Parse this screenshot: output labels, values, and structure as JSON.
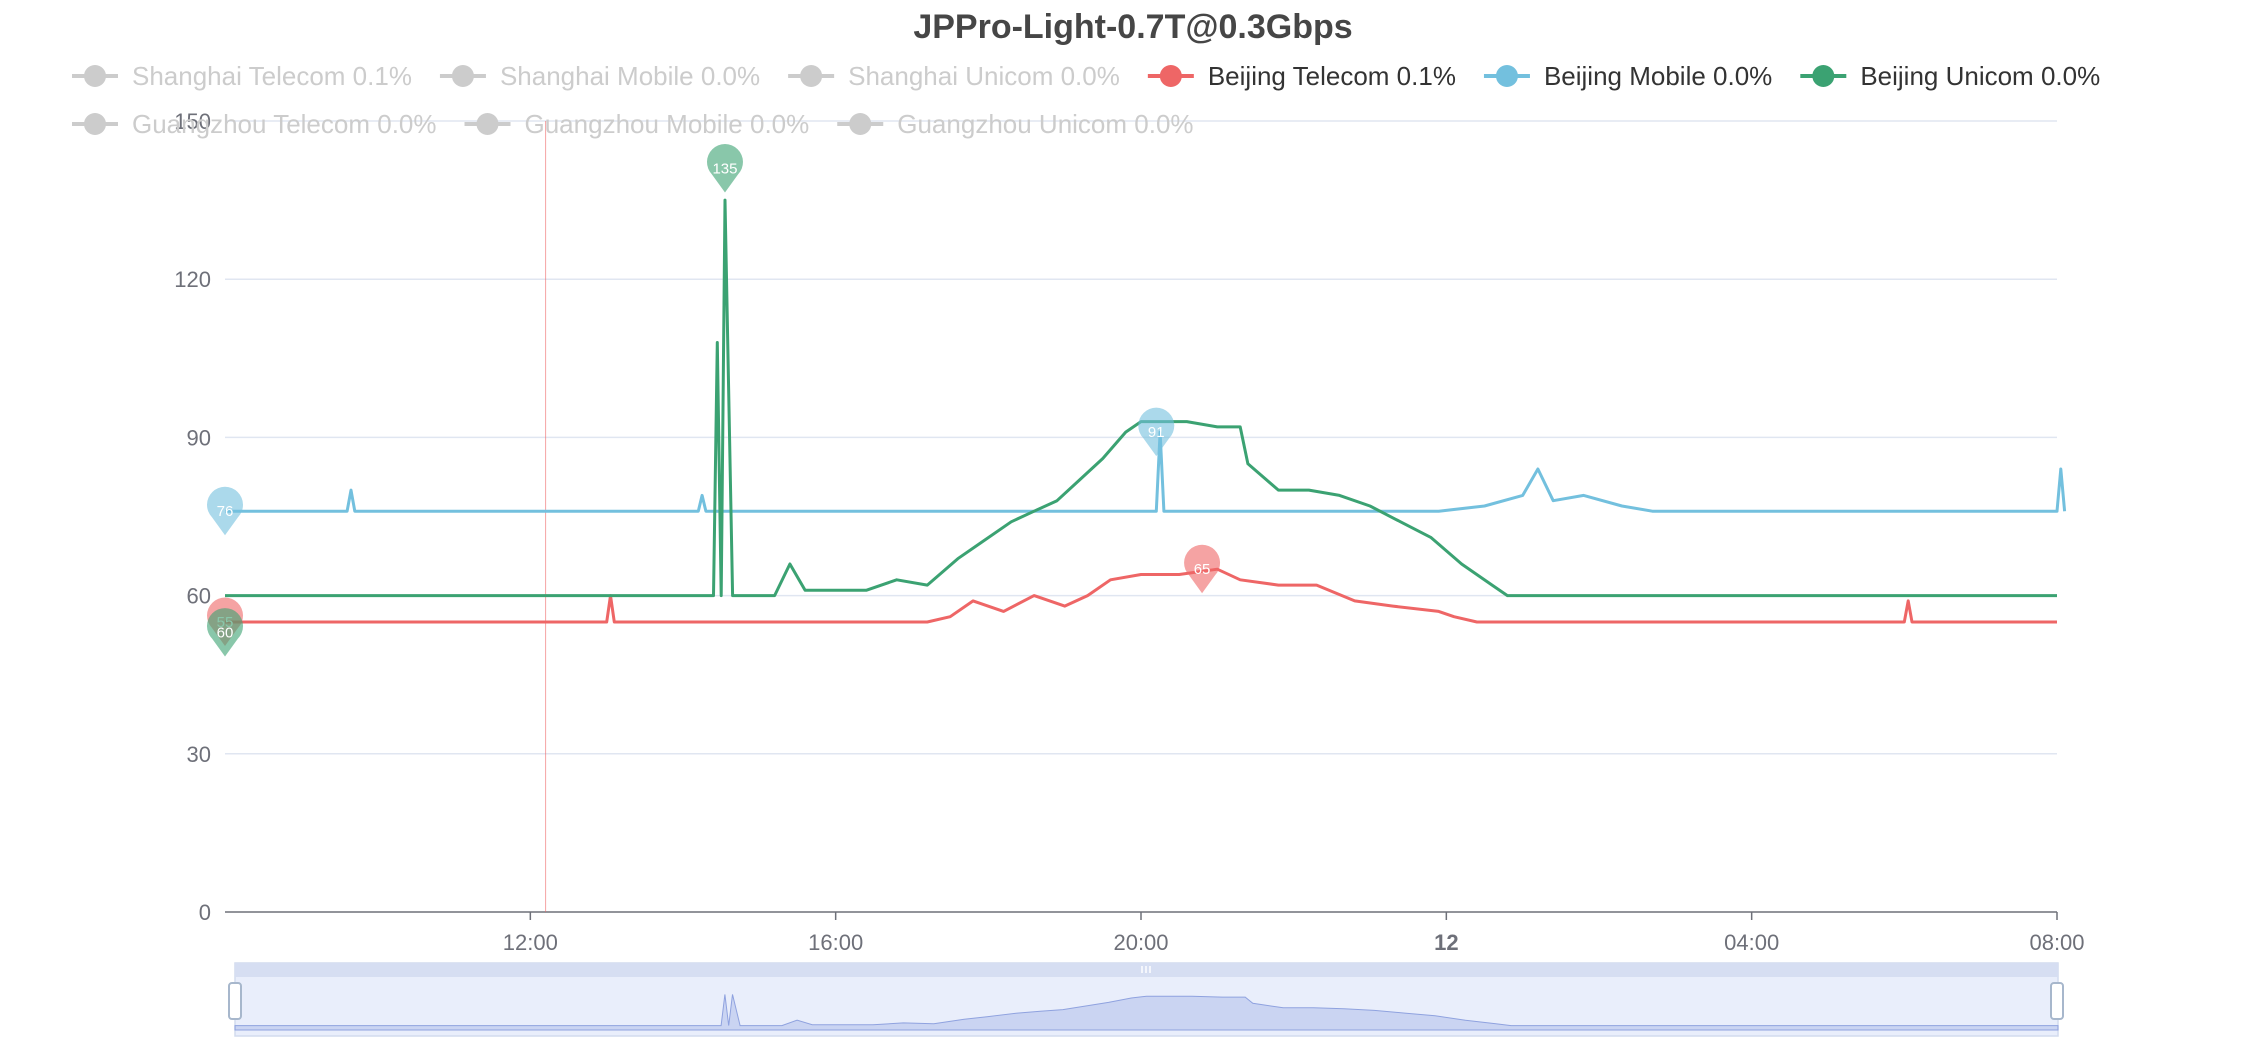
{
  "chart_data": {
    "type": "line",
    "title": "JPPro-Light-0.7T@0.3Gbps",
    "ylim": [
      0,
      150
    ],
    "y_ticks": [
      "0",
      "30",
      "60",
      "90",
      "120",
      "150"
    ],
    "x_ticks": [
      {
        "label": "12:00",
        "pos": 12,
        "bold": false
      },
      {
        "label": "16:00",
        "pos": 16,
        "bold": false
      },
      {
        "label": "20:00",
        "pos": 20,
        "bold": false
      },
      {
        "label": "12",
        "pos": 24,
        "bold": true
      },
      {
        "label": "04:00",
        "pos": 28,
        "bold": false
      },
      {
        "label": "08:00",
        "pos": 32,
        "bold": false
      }
    ],
    "x_range_hours": [
      8,
      32
    ],
    "grid": true,
    "legend_position": "top",
    "cursor_hour": 12.2,
    "legend": [
      {
        "name": "Shanghai Telecom 0.1%",
        "active": false,
        "color": "#cccccc"
      },
      {
        "name": "Shanghai Mobile 0.0%",
        "active": false,
        "color": "#cccccc"
      },
      {
        "name": "Shanghai Unicom 0.0%",
        "active": false,
        "color": "#cccccc"
      },
      {
        "name": "Beijing Telecom 0.1%",
        "active": true,
        "color": "#ee6666"
      },
      {
        "name": "Beijing Mobile 0.0%",
        "active": true,
        "color": "#73c0de"
      },
      {
        "name": "Beijing Unicom 0.0%",
        "active": true,
        "color": "#3ba272"
      },
      {
        "name": "Guangzhou Telecom 0.0%",
        "active": false,
        "color": "#cccccc"
      },
      {
        "name": "Guangzhou Mobile 0.0%",
        "active": false,
        "color": "#cccccc"
      },
      {
        "name": "Guangzhou Unicom 0.0%",
        "active": false,
        "color": "#cccccc"
      }
    ],
    "series": [
      {
        "name": "Beijing Telecom 0.1%",
        "color": "#ee6666",
        "points": [
          [
            8,
            55
          ],
          [
            13.0,
            55
          ],
          [
            13.05,
            60
          ],
          [
            13.1,
            55
          ],
          [
            17.2,
            55
          ],
          [
            17.5,
            56
          ],
          [
            17.8,
            59
          ],
          [
            18.2,
            57
          ],
          [
            18.6,
            60
          ],
          [
            19.0,
            58
          ],
          [
            19.3,
            60
          ],
          [
            19.6,
            63
          ],
          [
            20.0,
            64
          ],
          [
            20.5,
            64
          ],
          [
            21.0,
            65
          ],
          [
            21.3,
            63
          ],
          [
            21.8,
            62
          ],
          [
            22.3,
            62
          ],
          [
            22.8,
            59
          ],
          [
            23.3,
            58
          ],
          [
            23.9,
            57
          ],
          [
            24.1,
            56
          ],
          [
            24.4,
            55
          ],
          [
            30.0,
            55
          ],
          [
            30.05,
            59
          ],
          [
            30.1,
            55
          ],
          [
            32,
            55
          ]
        ],
        "markers": [
          {
            "label": "55",
            "x": 8,
            "y": 55
          },
          {
            "label": "65",
            "x": 20.8,
            "y": 65
          }
        ]
      },
      {
        "name": "Beijing Mobile 0.0%",
        "color": "#73c0de",
        "points": [
          [
            8,
            76
          ],
          [
            9.6,
            76
          ],
          [
            9.65,
            80
          ],
          [
            9.7,
            76
          ],
          [
            14.2,
            76
          ],
          [
            14.25,
            79
          ],
          [
            14.3,
            76
          ],
          [
            20.2,
            76
          ],
          [
            20.25,
            91
          ],
          [
            20.3,
            76
          ],
          [
            23.9,
            76
          ],
          [
            24.5,
            77
          ],
          [
            25.0,
            79
          ],
          [
            25.2,
            84
          ],
          [
            25.4,
            78
          ],
          [
            25.8,
            79
          ],
          [
            26.3,
            77
          ],
          [
            26.7,
            76
          ],
          [
            32.0,
            76
          ],
          [
            32.05,
            84
          ],
          [
            32.1,
            76
          ]
        ],
        "markers": [
          {
            "label": "76",
            "x": 8,
            "y": 76
          },
          {
            "label": "91",
            "x": 20.2,
            "y": 91
          }
        ]
      },
      {
        "name": "Beijing Unicom 0.0%",
        "color": "#3ba272",
        "points": [
          [
            8,
            60
          ],
          [
            14.4,
            60
          ],
          [
            14.45,
            108
          ],
          [
            14.5,
            60
          ],
          [
            14.55,
            135
          ],
          [
            14.65,
            60
          ],
          [
            15.2,
            60
          ],
          [
            15.4,
            66
          ],
          [
            15.6,
            61
          ],
          [
            16.4,
            61
          ],
          [
            16.8,
            63
          ],
          [
            17.2,
            62
          ],
          [
            17.6,
            67
          ],
          [
            17.9,
            70
          ],
          [
            18.3,
            74
          ],
          [
            18.6,
            76
          ],
          [
            18.9,
            78
          ],
          [
            19.2,
            82
          ],
          [
            19.5,
            86
          ],
          [
            19.8,
            91
          ],
          [
            20.0,
            93
          ],
          [
            20.6,
            93
          ],
          [
            21.0,
            92
          ],
          [
            21.3,
            92
          ],
          [
            21.4,
            85
          ],
          [
            21.8,
            80
          ],
          [
            22.2,
            80
          ],
          [
            22.6,
            79
          ],
          [
            23.0,
            77
          ],
          [
            23.4,
            74
          ],
          [
            23.8,
            71
          ],
          [
            24.2,
            66
          ],
          [
            24.6,
            62
          ],
          [
            24.8,
            60
          ],
          [
            32,
            60
          ]
        ],
        "markers": [
          {
            "label": "60",
            "x": 8,
            "y": 53
          },
          {
            "label": "135",
            "x": 14.55,
            "y": 141
          }
        ]
      }
    ]
  }
}
